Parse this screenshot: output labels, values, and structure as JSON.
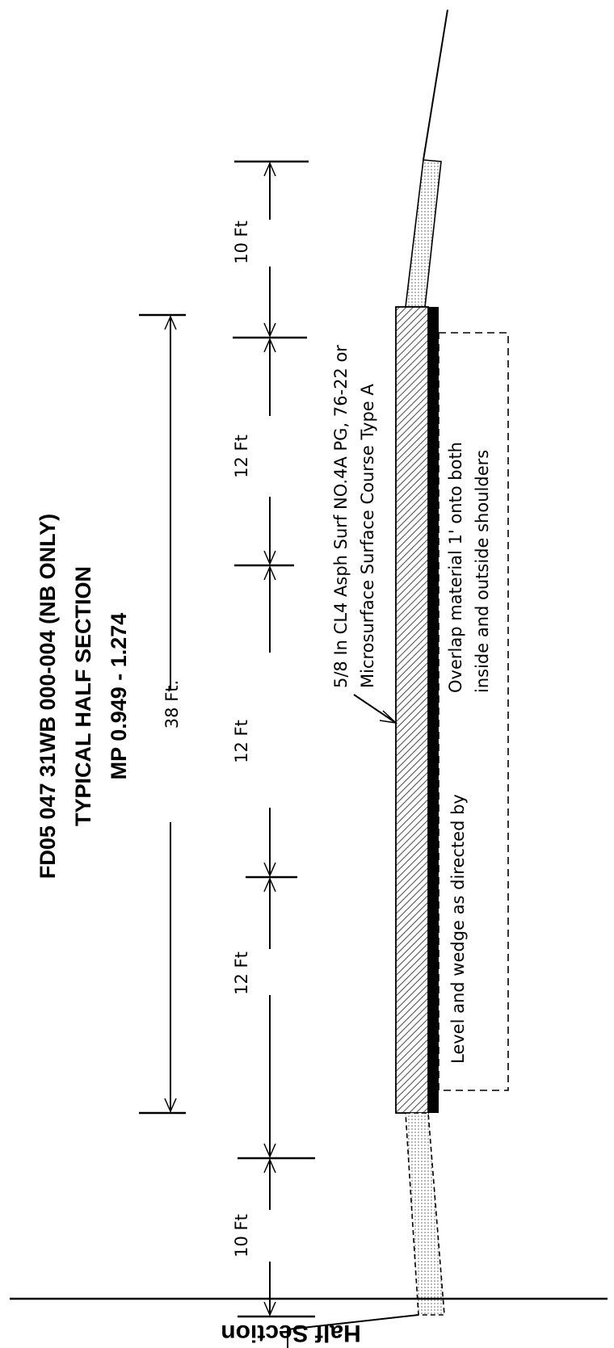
{
  "title": {
    "line1": "FD05 047 31WB 000-004 (NB ONLY)",
    "line2": "TYPICAL HALF SECTION",
    "line3": "MP 0.949 - 1.274"
  },
  "dimensions": {
    "shoulder_top": "10 Ft",
    "lane_1": "12 Ft",
    "lane_2": "12 Ft",
    "lane_3": "12 Ft",
    "shoulder_bottom": "10 Ft",
    "overall": "38 Ft."
  },
  "notes": {
    "surface_line1": "5/8 In CL4 Asph Surf NO.4A PG, 76-22 or",
    "surface_line2": "Microsurface Surface Course Type A",
    "overlap_line1": "Overlap material 1' onto both",
    "overlap_line2": "inside and outside shoulders",
    "level_wedge": "Level and wedge as directed by"
  },
  "footer": {
    "label": "Half Section"
  }
}
